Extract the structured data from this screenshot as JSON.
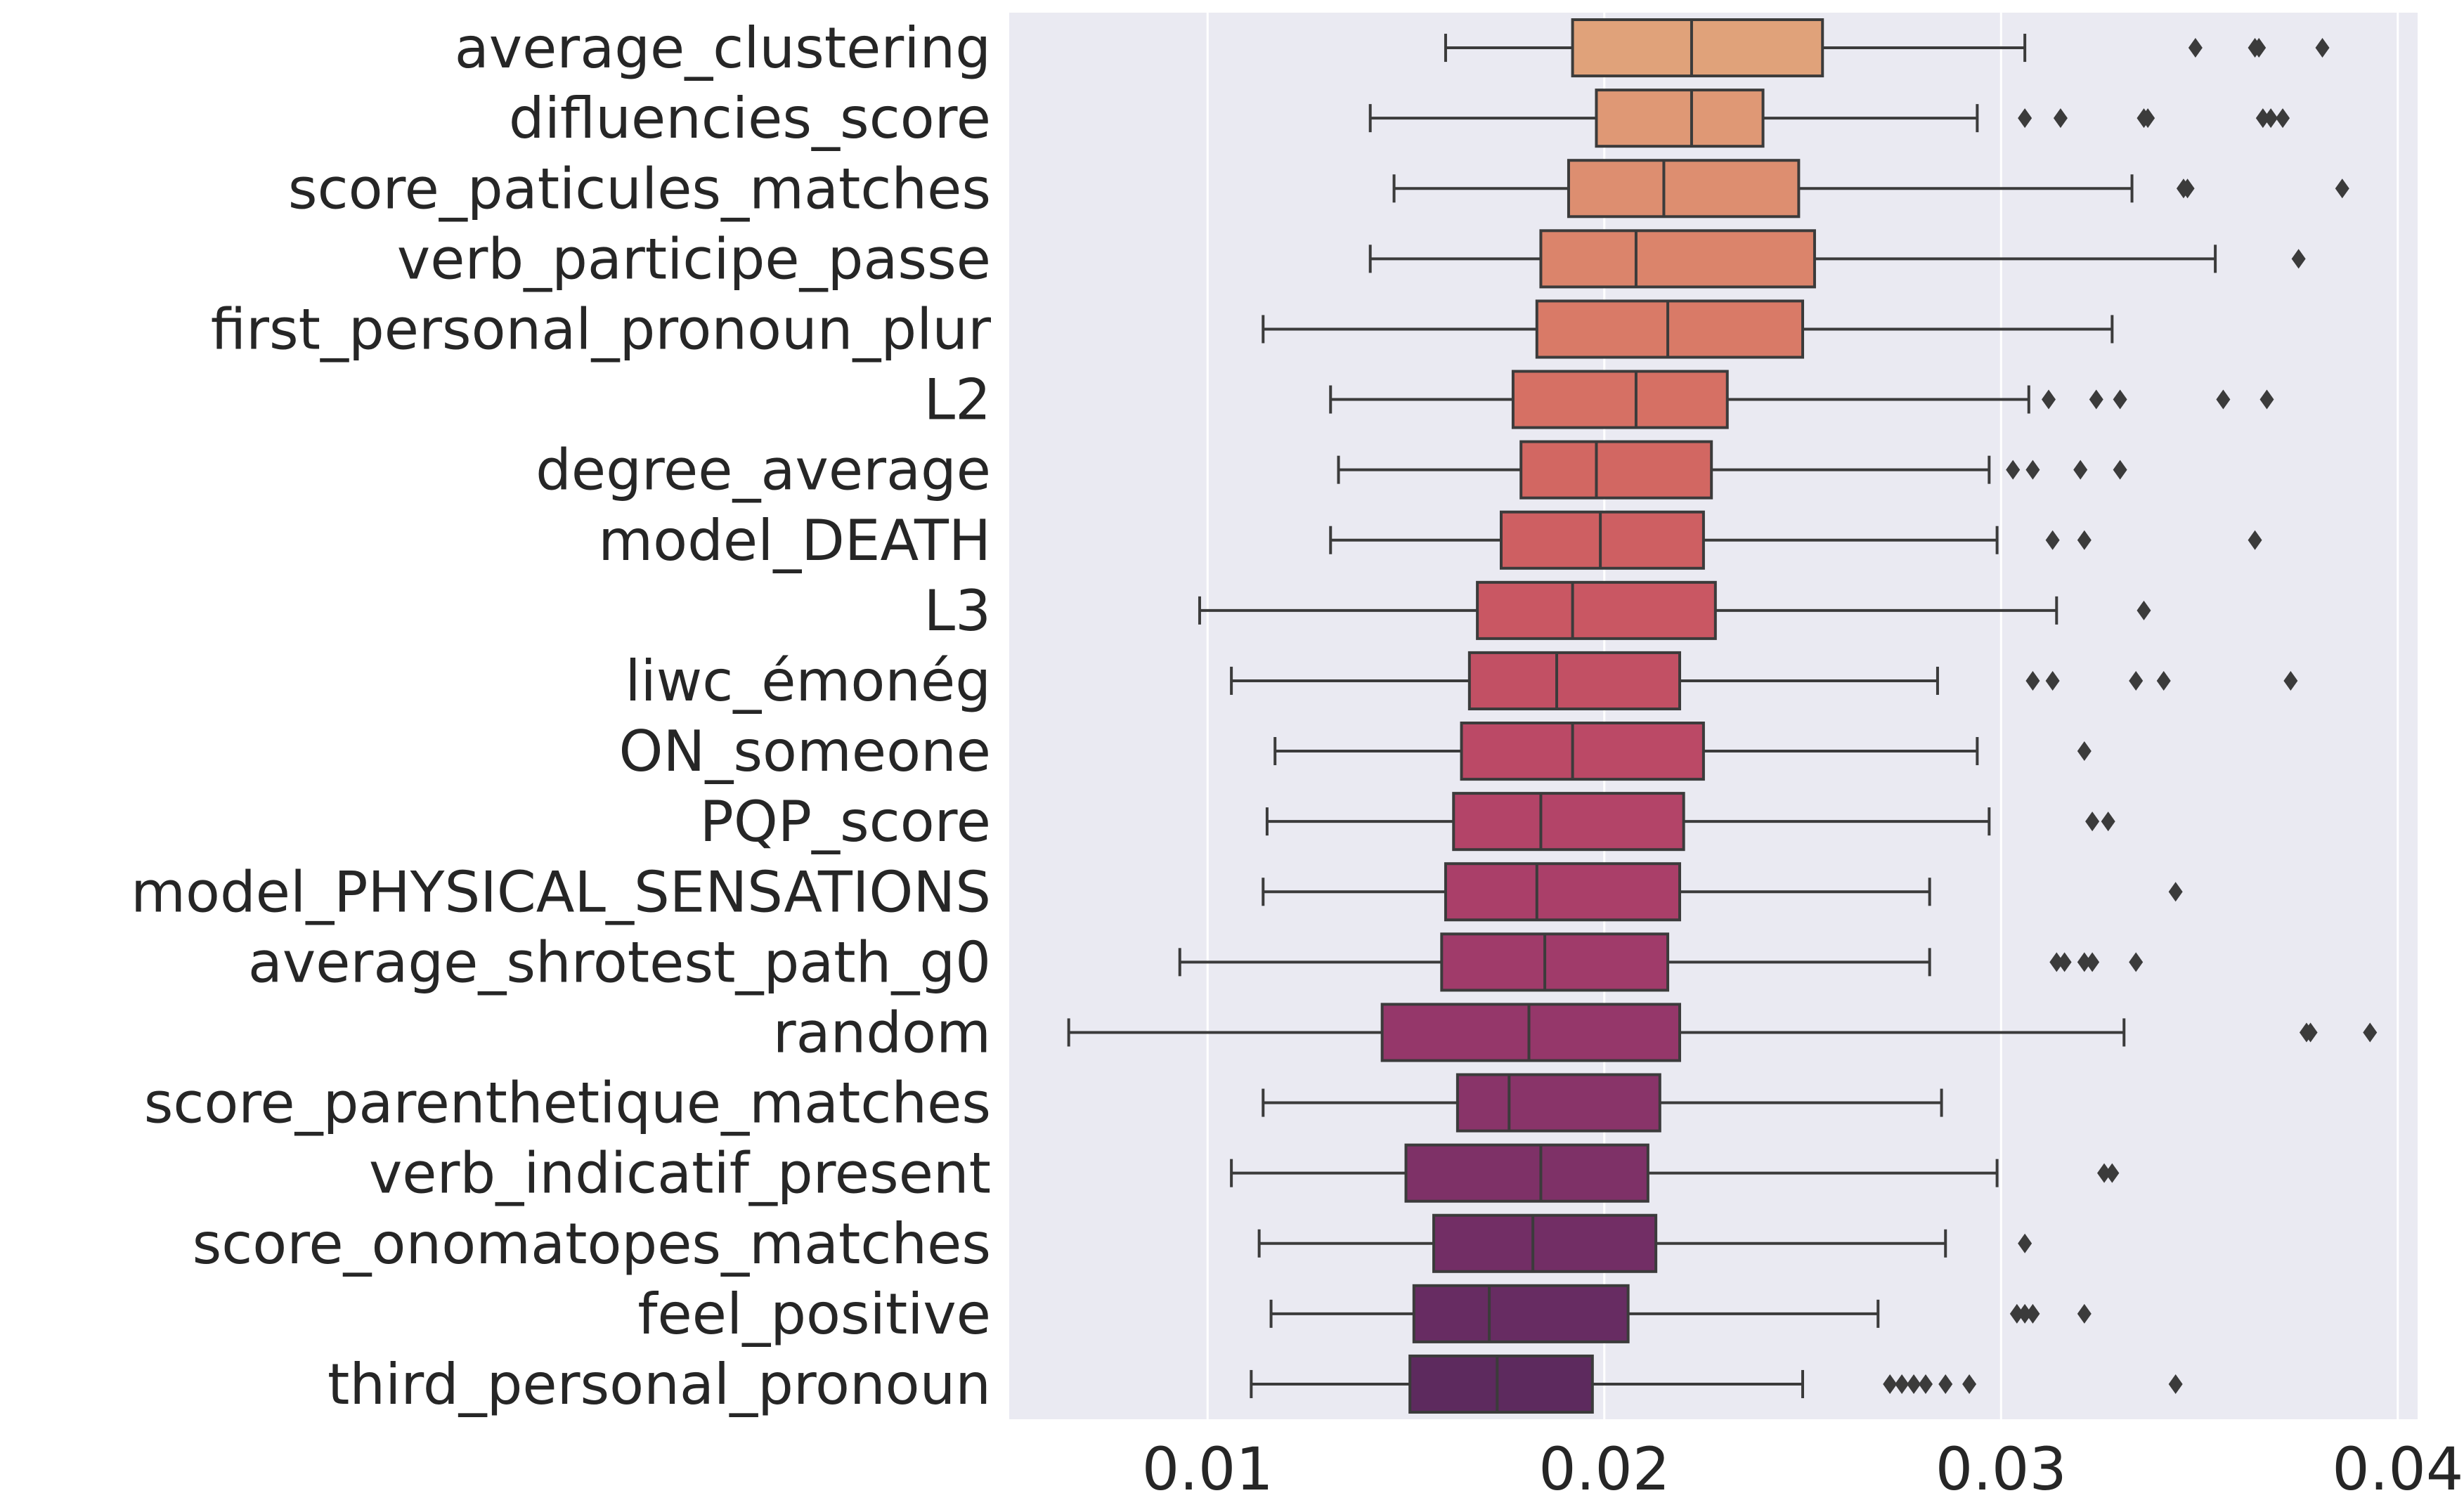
{
  "chart_data": {
    "type": "boxplot",
    "orientation": "horizontal",
    "xlim": [
      0.005,
      0.0405
    ],
    "xticks": [
      {
        "value": 0.01,
        "label": "0.01"
      },
      {
        "value": 0.02,
        "label": "0.02"
      },
      {
        "value": 0.03,
        "label": "0.03"
      },
      {
        "value": 0.04,
        "label": "0.04"
      }
    ],
    "grid": "vertical",
    "background_color": "#EAEAF2",
    "categories": [
      {
        "label": "average_clustering",
        "whisker_low": 0.016,
        "q1": 0.0192,
        "median": 0.0222,
        "q3": 0.0255,
        "whisker_high": 0.0306,
        "outliers": [
          0.0349,
          0.0364,
          0.0365,
          0.0381
        ],
        "color": "#E0A27A"
      },
      {
        "label": "difluencies_score",
        "whisker_low": 0.0141,
        "q1": 0.0198,
        "median": 0.0222,
        "q3": 0.024,
        "whisker_high": 0.0294,
        "outliers": [
          0.0306,
          0.0315,
          0.0336,
          0.0337,
          0.0366,
          0.0368,
          0.0371
        ],
        "color": "#DF9875"
      },
      {
        "label": "score_paticules_matches",
        "whisker_low": 0.0147,
        "q1": 0.0191,
        "median": 0.0215,
        "q3": 0.0249,
        "whisker_high": 0.0333,
        "outliers": [
          0.0346,
          0.0347,
          0.0386
        ],
        "color": "#DD8E70"
      },
      {
        "label": "verb_participe_passe",
        "whisker_low": 0.0141,
        "q1": 0.0184,
        "median": 0.0208,
        "q3": 0.0253,
        "whisker_high": 0.0354,
        "outliers": [
          0.0375
        ],
        "color": "#DB846B"
      },
      {
        "label": "first_personal_pronoun_plur",
        "whisker_low": 0.0114,
        "q1": 0.0183,
        "median": 0.0216,
        "q3": 0.025,
        "whisker_high": 0.0328,
        "outliers": [],
        "color": "#D97A67"
      },
      {
        "label": "L2",
        "whisker_low": 0.0131,
        "q1": 0.0177,
        "median": 0.0208,
        "q3": 0.0231,
        "whisker_high": 0.0307,
        "outliers": [
          0.0312,
          0.0324,
          0.033,
          0.0356,
          0.0367
        ],
        "color": "#D67064"
      },
      {
        "label": "degree_average",
        "whisker_low": 0.0133,
        "q1": 0.0179,
        "median": 0.0198,
        "q3": 0.0227,
        "whisker_high": 0.0297,
        "outliers": [
          0.0303,
          0.0308,
          0.032,
          0.033
        ],
        "color": "#D26762"
      },
      {
        "label": "model_DEATH",
        "whisker_low": 0.0131,
        "q1": 0.0174,
        "median": 0.0199,
        "q3": 0.0225,
        "whisker_high": 0.0299,
        "outliers": [
          0.0313,
          0.0321,
          0.0364
        ],
        "color": "#CE5F62"
      },
      {
        "label": "L3",
        "whisker_low": 0.0098,
        "q1": 0.0168,
        "median": 0.0192,
        "q3": 0.0228,
        "whisker_high": 0.0314,
        "outliers": [
          0.0336
        ],
        "color": "#C95763"
      },
      {
        "label": "liwc_émonég",
        "whisker_low": 0.0106,
        "q1": 0.0166,
        "median": 0.0188,
        "q3": 0.0219,
        "whisker_high": 0.0284,
        "outliers": [
          0.0308,
          0.0313,
          0.0334,
          0.0341,
          0.0373
        ],
        "color": "#C25064"
      },
      {
        "label": "ON_someone",
        "whisker_low": 0.0117,
        "q1": 0.0164,
        "median": 0.0192,
        "q3": 0.0225,
        "whisker_high": 0.0294,
        "outliers": [
          0.0321
        ],
        "color": "#BB4966"
      },
      {
        "label": "PQP_score",
        "whisker_low": 0.0115,
        "q1": 0.0162,
        "median": 0.0184,
        "q3": 0.022,
        "whisker_high": 0.0297,
        "outliers": [
          0.0323,
          0.0327
        ],
        "color": "#B34468"
      },
      {
        "label": "model_PHYSICAL_SENSATIONS",
        "whisker_low": 0.0114,
        "q1": 0.016,
        "median": 0.0183,
        "q3": 0.0219,
        "whisker_high": 0.0282,
        "outliers": [
          0.0344
        ],
        "color": "#AA3F69"
      },
      {
        "label": "average_shrotest_path_g0",
        "whisker_low": 0.0093,
        "q1": 0.0159,
        "median": 0.0185,
        "q3": 0.0216,
        "whisker_high": 0.0282,
        "outliers": [
          0.0314,
          0.0316,
          0.0321,
          0.0323,
          0.0334
        ],
        "color": "#A03B6A"
      },
      {
        "label": "random",
        "whisker_low": 0.0065,
        "q1": 0.0144,
        "median": 0.0181,
        "q3": 0.0219,
        "whisker_high": 0.0331,
        "outliers": [
          0.0377,
          0.0378,
          0.0393
        ],
        "color": "#95376A"
      },
      {
        "label": "score_parenthetique_matches",
        "whisker_low": 0.0114,
        "q1": 0.0163,
        "median": 0.0176,
        "q3": 0.0214,
        "whisker_high": 0.0285,
        "outliers": [],
        "color": "#893469"
      },
      {
        "label": "verb_indicatif_present",
        "whisker_low": 0.0106,
        "q1": 0.015,
        "median": 0.0184,
        "q3": 0.0211,
        "whisker_high": 0.0299,
        "outliers": [
          0.0326,
          0.0328
        ],
        "color": "#7E3167"
      },
      {
        "label": "score_onomatopes_matches",
        "whisker_low": 0.0113,
        "q1": 0.0157,
        "median": 0.0182,
        "q3": 0.0213,
        "whisker_high": 0.0286,
        "outliers": [
          0.0306
        ],
        "color": "#722E65"
      },
      {
        "label": "feel_positive",
        "whisker_low": 0.0116,
        "q1": 0.0152,
        "median": 0.0171,
        "q3": 0.0206,
        "whisker_high": 0.0269,
        "outliers": [
          0.0304,
          0.0306,
          0.0308,
          0.0321
        ],
        "color": "#672C62"
      },
      {
        "label": "third_personal_pronoun",
        "whisker_low": 0.0111,
        "q1": 0.0151,
        "median": 0.0173,
        "q3": 0.0197,
        "whisker_high": 0.025,
        "outliers": [
          0.0272,
          0.0275,
          0.0278,
          0.0281,
          0.0286,
          0.0292,
          0.0344
        ],
        "color": "#5D2A5E"
      }
    ]
  }
}
